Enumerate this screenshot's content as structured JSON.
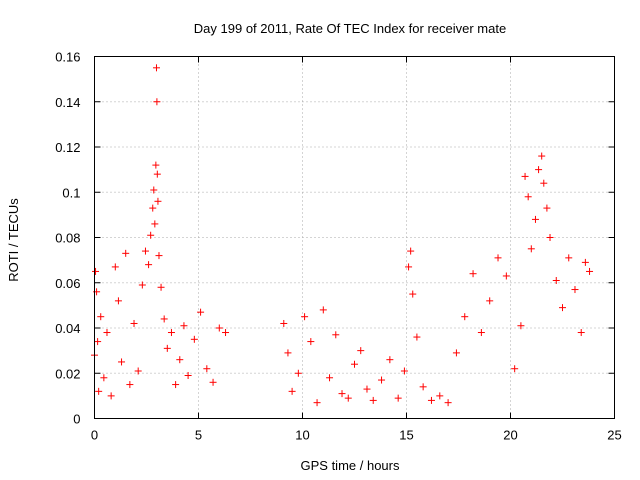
{
  "chart_data": {
    "type": "scatter",
    "title": "Day 199 of 2011, Rate Of TEC Index for receiver mate",
    "xlabel": "GPS time / hours",
    "ylabel": "ROTI / TECUs",
    "xlim": [
      0,
      25
    ],
    "ylim": [
      0,
      0.16
    ],
    "xticks": [
      0,
      5,
      10,
      15,
      20,
      25
    ],
    "yticks": [
      0,
      0.02,
      0.04,
      0.06,
      0.08,
      0.1,
      0.12,
      0.14,
      0.16
    ],
    "grid": true,
    "marker": "+",
    "series": [
      {
        "name": "ROTI",
        "color": "#ff0000",
        "x": [
          0.0,
          0.05,
          0.1,
          0.15,
          0.2,
          0.3,
          0.45,
          0.6,
          0.8,
          1.0,
          1.15,
          1.3,
          1.5,
          1.7,
          1.9,
          2.1,
          2.3,
          2.45,
          2.6,
          2.7,
          2.8,
          2.85,
          2.9,
          2.95,
          2.98,
          3.0,
          3.02,
          3.05,
          3.1,
          3.2,
          3.35,
          3.5,
          3.7,
          3.9,
          4.1,
          4.3,
          4.5,
          4.8,
          5.1,
          5.4,
          5.7,
          6.0,
          6.3,
          9.1,
          9.3,
          9.5,
          9.8,
          10.1,
          10.4,
          10.7,
          11.0,
          11.3,
          11.6,
          11.9,
          12.2,
          12.5,
          12.8,
          13.1,
          13.4,
          13.8,
          14.2,
          14.6,
          14.9,
          15.1,
          15.2,
          15.3,
          15.5,
          15.8,
          16.2,
          16.6,
          17.0,
          17.4,
          17.8,
          18.2,
          18.6,
          19.0,
          19.4,
          19.8,
          20.2,
          20.5,
          20.7,
          20.85,
          21.0,
          21.2,
          21.35,
          21.5,
          21.6,
          21.75,
          21.9,
          22.2,
          22.5,
          22.8,
          23.1,
          23.4,
          23.6,
          23.8
        ],
        "y": [
          0.028,
          0.065,
          0.056,
          0.034,
          0.012,
          0.045,
          0.018,
          0.038,
          0.01,
          0.067,
          0.052,
          0.025,
          0.073,
          0.015,
          0.042,
          0.021,
          0.059,
          0.074,
          0.068,
          0.081,
          0.093,
          0.101,
          0.086,
          0.112,
          0.155,
          0.14,
          0.108,
          0.096,
          0.072,
          0.058,
          0.044,
          0.031,
          0.038,
          0.015,
          0.026,
          0.041,
          0.019,
          0.035,
          0.047,
          0.022,
          0.016,
          0.04,
          0.038,
          0.042,
          0.029,
          0.012,
          0.02,
          0.045,
          0.034,
          0.007,
          0.048,
          0.018,
          0.037,
          0.011,
          0.009,
          0.024,
          0.03,
          0.013,
          0.008,
          0.017,
          0.026,
          0.009,
          0.021,
          0.067,
          0.074,
          0.055,
          0.036,
          0.014,
          0.008,
          0.01,
          0.007,
          0.029,
          0.045,
          0.064,
          0.038,
          0.052,
          0.071,
          0.063,
          0.022,
          0.041,
          0.107,
          0.098,
          0.075,
          0.088,
          0.11,
          0.116,
          0.104,
          0.093,
          0.08,
          0.061,
          0.049,
          0.071,
          0.057,
          0.038,
          0.069,
          0.065
        ]
      }
    ]
  }
}
